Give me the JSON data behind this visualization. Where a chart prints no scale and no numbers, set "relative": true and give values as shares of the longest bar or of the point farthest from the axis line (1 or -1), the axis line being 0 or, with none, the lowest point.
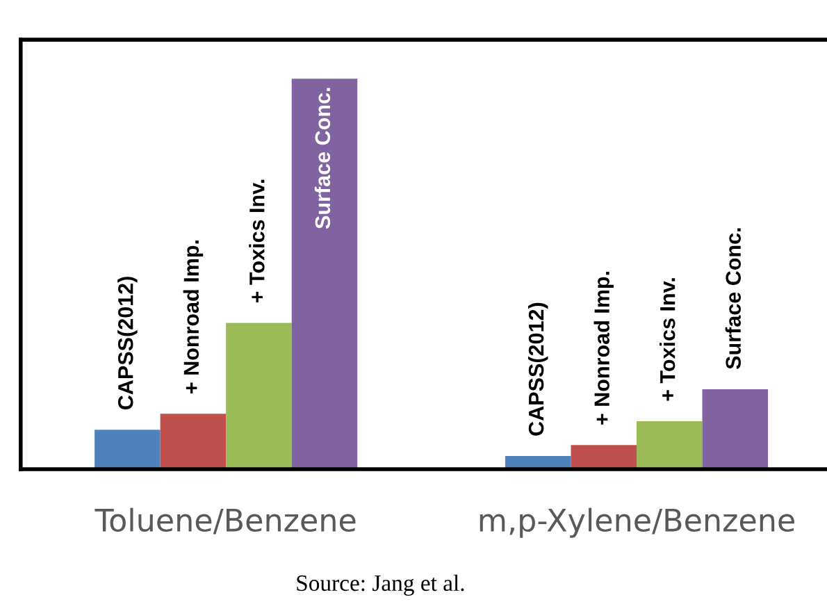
{
  "chart_data": {
    "type": "bar",
    "relative": true,
    "categories": [
      "Toluene/Benzene",
      "m,p-Xylene/Benzene"
    ],
    "series": [
      {
        "name": "CAPSS(2012)",
        "color": "#4f81bd",
        "values": [
          0.101,
          0.034
        ]
      },
      {
        "name": "+ Nonroad Imp.",
        "color": "#c0504d",
        "values": [
          0.142,
          0.062
        ]
      },
      {
        "name": "+ Toxics Inv.",
        "color": "#9bbb59",
        "values": [
          0.375,
          0.123
        ]
      },
      {
        "name": "Surface Conc.",
        "color": "#8064a2",
        "values": [
          1,
          0.205
        ]
      }
    ],
    "grid": false,
    "legend": false,
    "annotations": [
      "Source: Jang et al."
    ]
  }
}
